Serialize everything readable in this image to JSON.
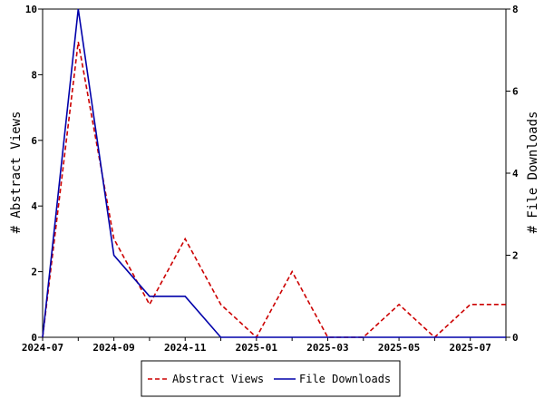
{
  "chart_data": {
    "type": "line",
    "x": [
      "2024-07",
      "2024-08",
      "2024-09",
      "2024-10",
      "2024-11",
      "2024-12",
      "2025-01",
      "2025-02",
      "2025-03",
      "2025-04",
      "2025-05",
      "2025-06",
      "2025-07",
      "2025-08"
    ],
    "x_tick_labels": [
      "2024-07",
      "2024-09",
      "2024-11",
      "2025-01",
      "2025-03",
      "2025-05",
      "2025-07"
    ],
    "series": [
      {
        "name": "Abstract Views",
        "axis": "left",
        "color": "#cc0000",
        "dash": "dashed",
        "values": [
          0,
          9,
          3,
          1,
          3,
          1,
          0,
          2,
          0,
          0,
          1,
          0,
          1,
          1
        ]
      },
      {
        "name": "File Downloads",
        "axis": "right",
        "color": "#0000aa",
        "dash": "solid",
        "values": [
          0,
          8,
          2,
          1,
          1,
          0,
          0,
          0,
          0,
          0,
          0,
          0,
          0,
          0
        ]
      }
    ],
    "ylabel": "# Abstract Views",
    "ylabel_right": "# File Downloads",
    "ylim": [
      0,
      10
    ],
    "ylim_right": [
      0,
      8
    ],
    "yticks": [
      "0",
      "2",
      "4",
      "6",
      "8",
      "10"
    ],
    "yticks_right": [
      "0",
      "2",
      "4",
      "6",
      "8"
    ],
    "grid": false,
    "legend_position": "bottom"
  }
}
